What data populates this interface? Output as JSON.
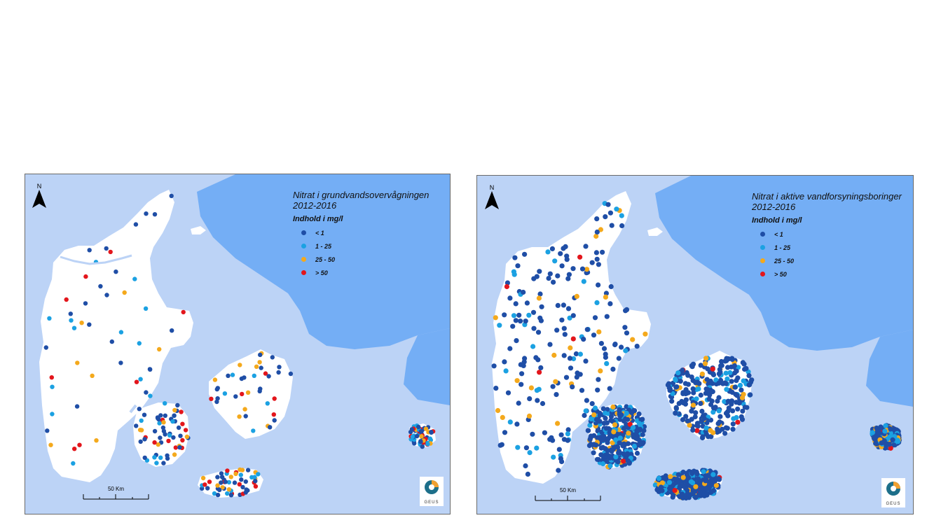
{
  "maps": [
    {
      "title_line1": "Nitrat i grundvandsovervågningen",
      "title_line2": "2012-2016",
      "legend_heading": "Indhold i mg/l",
      "legend": [
        {
          "label": "< 1",
          "color": "#1f4ea6"
        },
        {
          "label": "1 - 25",
          "color": "#1ba1e2"
        },
        {
          "label": "25 - 50",
          "color": "#f4a91c"
        },
        {
          "label": "> 50",
          "color": "#e3161c"
        }
      ],
      "north_label": "N",
      "scale_label": "50 Km",
      "logo_text": "GEUS"
    },
    {
      "title_line1": "Nitrat i aktive vandforsyningsboringer",
      "title_line2": "2012-2016",
      "legend_heading": "Indhold i mg/l",
      "legend": [
        {
          "label": "< 1",
          "color": "#1f4ea6"
        },
        {
          "label": "1 - 25",
          "color": "#1ba1e2"
        },
        {
          "label": "25 - 50",
          "color": "#f4a91c"
        },
        {
          "label": "> 50",
          "color": "#e3161c"
        }
      ],
      "north_label": "N",
      "scale_label": "50 Km",
      "logo_text": "GEUS"
    }
  ],
  "colors": {
    "sea": "#74aef5",
    "land_neighbor": "#bcd3f6",
    "land_dk": "#ffffff"
  }
}
